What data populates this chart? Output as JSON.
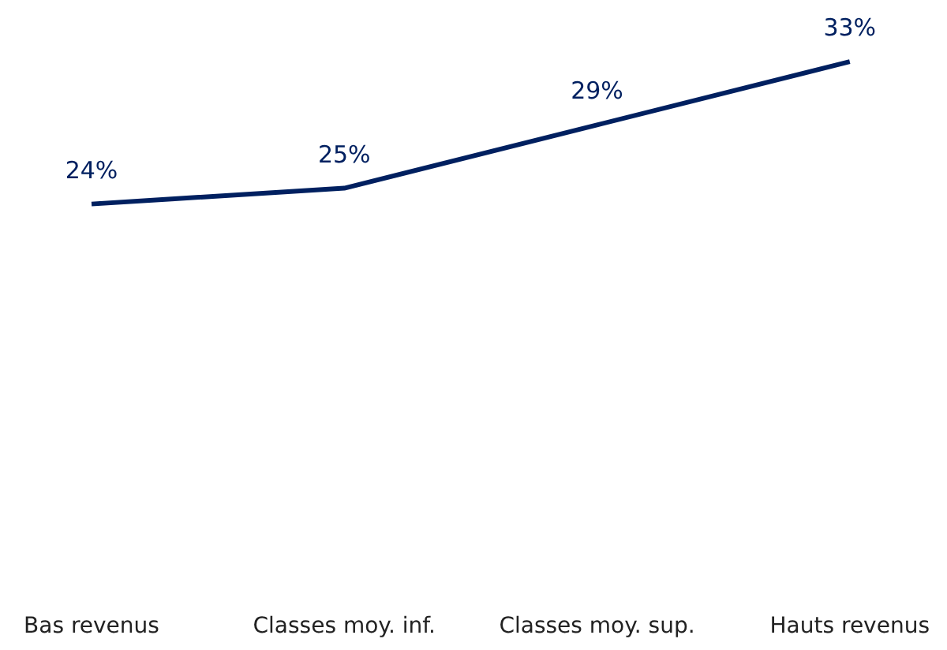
{
  "chart_data": {
    "type": "line",
    "categories": [
      "Bas revenus",
      "Classes moy. inf.",
      "Classes moy. sup.",
      "Hauts revenus"
    ],
    "series": [
      {
        "color": "#002060",
        "values": [
          24,
          25,
          29,
          33
        ],
        "value_labels": [
          "24%",
          "25%",
          "29%",
          "33%"
        ]
      }
    ],
    "marker": "none",
    "grid": false,
    "tick_labels": "x"
  }
}
